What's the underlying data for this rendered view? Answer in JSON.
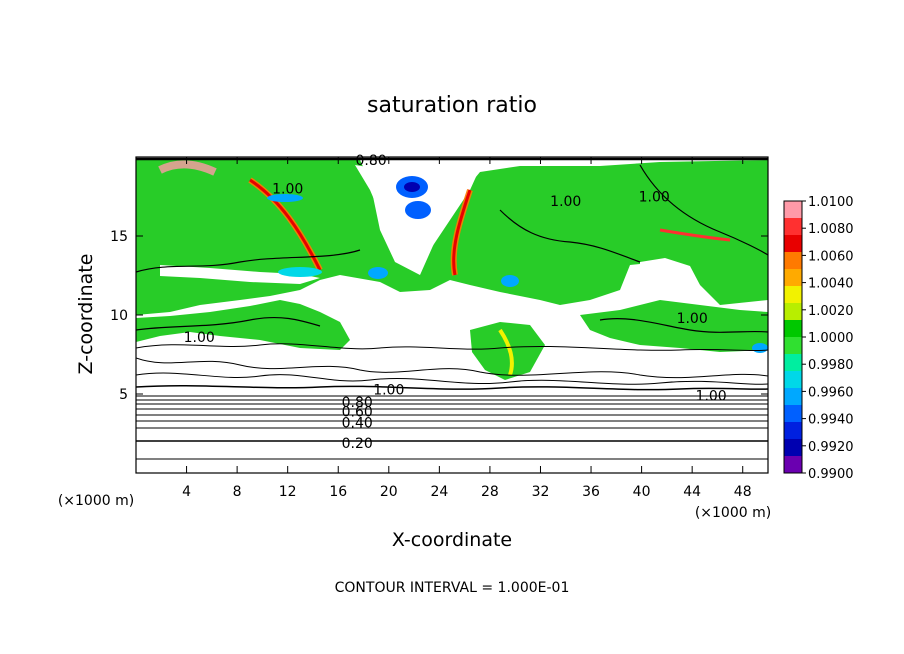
{
  "chart_data": {
    "type": "heatmap",
    "title": "saturation ratio",
    "xlabel": "X-coordinate",
    "ylabel": "Z-coordinate",
    "x_unit": "(×1000 m)",
    "x_unit_right": "(×1000 m)",
    "x_ticks": [
      4,
      8,
      12,
      16,
      20,
      24,
      28,
      32,
      36,
      40,
      44,
      48
    ],
    "y_ticks": [
      5,
      10,
      15
    ],
    "xlim": [
      0,
      50
    ],
    "ylim": [
      0,
      20
    ],
    "footer": "CONTOUR INTERVAL = 1.000E-01",
    "colorbar": {
      "labels": [
        "1.0100",
        "1.0080",
        "1.0060",
        "1.0040",
        "1.0020",
        "1.0000",
        "0.9980",
        "0.9960",
        "0.9940",
        "0.9920",
        "0.9900"
      ],
      "colors": [
        "#ff9aa8",
        "#ff3030",
        "#e80000",
        "#ff7a00",
        "#ffaa00",
        "#f2f200",
        "#b8ee00",
        "#00c800",
        "#30e030",
        "#00eea0",
        "#00d8e8",
        "#00a8ff",
        "#0060ff",
        "#0020e0",
        "#0000b0",
        "#6a00b0"
      ]
    },
    "contour_labels": [
      {
        "text": "0.80",
        "x": 18.6,
        "y": 19.8
      },
      {
        "text": "1.00",
        "x": 12.0,
        "y": 18.0
      },
      {
        "text": "1.00",
        "x": 34.0,
        "y": 17.2
      },
      {
        "text": "1.00",
        "x": 41.0,
        "y": 17.5
      },
      {
        "text": "1.00",
        "x": 5.0,
        "y": 8.6
      },
      {
        "text": "1.00",
        "x": 44.0,
        "y": 9.8
      },
      {
        "text": "1.00",
        "x": 20.0,
        "y": 5.3
      },
      {
        "text": "1.00",
        "x": 45.5,
        "y": 4.9
      },
      {
        "text": "0.80",
        "x": 17.5,
        "y": 4.5
      },
      {
        "text": "0.60",
        "x": 17.5,
        "y": 3.9
      },
      {
        "text": "0.40",
        "x": 17.5,
        "y": 3.2
      },
      {
        "text": "0.20",
        "x": 17.5,
        "y": 1.9
      }
    ]
  }
}
